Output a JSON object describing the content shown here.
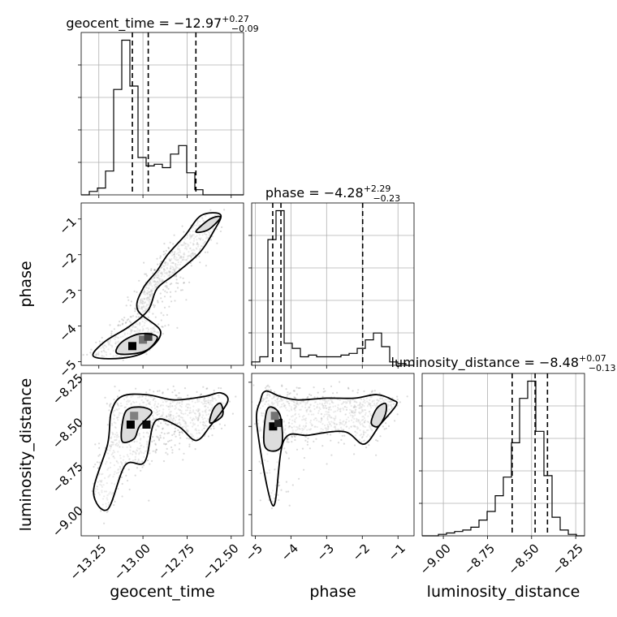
{
  "chart_data": {
    "type": "corner",
    "parameters": [
      "geocent_time",
      "phase",
      "luminosity_distance"
    ],
    "axis_labels": {
      "geocent_time": "geocent_time",
      "phase": "phase",
      "luminosity_distance": "luminosity_distance"
    },
    "ranges": {
      "geocent_time": [
        -13.35,
        -12.43
      ],
      "phase": [
        -5.1,
        -0.55
      ],
      "luminosity_distance": [
        -9.12,
        -8.2
      ]
    },
    "ticks": {
      "geocent_time": {
        "values": [
          -13.25,
          -13.0,
          -12.75,
          -12.5
        ],
        "labels": [
          "−13.25",
          "−13.00",
          "−12.75",
          "−12.50"
        ]
      },
      "phase": {
        "values": [
          -5,
          -4,
          -3,
          -2,
          -1
        ],
        "labels": [
          "−5",
          "−4",
          "−3",
          "−2",
          "−1"
        ]
      },
      "luminosity_distance": {
        "values": [
          -9.0,
          -8.75,
          -8.5,
          -8.25
        ],
        "labels": [
          "−9.00",
          "−8.75",
          "−8.50",
          "−8.25"
        ]
      }
    },
    "grid": true,
    "marginals": [
      {
        "parameter": "geocent_time",
        "title_main": "geocent_time = −12.97",
        "title_sup": "+0.27",
        "title_sub": "−0.09",
        "bin_edges": [
          -13.35,
          -13.304,
          -13.258,
          -13.212,
          -13.166,
          -13.12,
          -13.074,
          -13.028,
          -12.982,
          -12.936,
          -12.89,
          -12.844,
          -12.798,
          -12.752,
          -12.706,
          -12.66,
          -12.614,
          -12.568,
          -12.522,
          -12.476,
          -12.43
        ],
        "counts": [
          0,
          2,
          4,
          14,
          62,
          91,
          64,
          22,
          17,
          18,
          16,
          24,
          29,
          13,
          3,
          0,
          0,
          0,
          0,
          0
        ],
        "quantiles": [
          -13.06,
          -12.97,
          -12.7
        ]
      },
      {
        "parameter": "phase",
        "title_main": "phase = −4.28",
        "title_sup": "+2.29",
        "title_sub": "−0.23",
        "bin_edges": [
          -5.1,
          -4.8725,
          -4.645,
          -4.4175,
          -4.19,
          -3.9625,
          -3.735,
          -3.5075,
          -3.28,
          -3.0525,
          -2.825,
          -2.5975,
          -2.37,
          -2.1425,
          -1.915,
          -1.6875,
          -1.46,
          -1.2325,
          -1.005,
          -0.7775,
          -0.55
        ],
        "counts": [
          2,
          5,
          74,
          91,
          13,
          10,
          5,
          6,
          5,
          5,
          5,
          6,
          7,
          10,
          15,
          19,
          11,
          2,
          1,
          0
        ],
        "quantiles": [
          -4.51,
          -4.28,
          -1.99
        ]
      },
      {
        "parameter": "luminosity_distance",
        "title_main": "luminosity_distance = −8.48",
        "title_sup": "+0.07",
        "title_sub": "−0.13",
        "bin_edges": [
          -9.12,
          -9.074,
          -9.028,
          -8.982,
          -8.936,
          -8.89,
          -8.844,
          -8.798,
          -8.752,
          -8.706,
          -8.66,
          -8.614,
          -8.568,
          -8.522,
          -8.476,
          -8.43,
          -8.384,
          -8.338,
          -8.292,
          -8.246,
          -8.2
        ],
        "counts": [
          0,
          0,
          1,
          2,
          3,
          4,
          6,
          11,
          17,
          28,
          41,
          65,
          96,
          108,
          73,
          42,
          13,
          4,
          1,
          0
        ],
        "quantiles": [
          -8.61,
          -8.48,
          -8.41
        ]
      }
    ],
    "joint": [
      {
        "x": "geocent_time",
        "y": "phase",
        "contours": [
          [
            [
              -13.28,
              -4.85
            ],
            [
              -13.22,
              -4.45
            ],
            [
              -13.08,
              -4.02
            ],
            [
              -12.97,
              -3.55
            ],
            [
              -12.92,
              -2.95
            ],
            [
              -12.82,
              -2.55
            ],
            [
              -12.68,
              -1.95
            ],
            [
              -12.6,
              -1.35
            ],
            [
              -12.56,
              -0.88
            ],
            [
              -12.67,
              -0.9
            ],
            [
              -12.76,
              -1.45
            ],
            [
              -12.86,
              -2.0
            ],
            [
              -12.92,
              -2.45
            ],
            [
              -13.0,
              -2.95
            ],
            [
              -13.03,
              -3.55
            ],
            [
              -12.9,
              -4.15
            ],
            [
              -12.98,
              -4.7
            ],
            [
              -13.12,
              -4.9
            ]
          ],
          [
            [
              -13.15,
              -4.75
            ],
            [
              -13.12,
              -4.45
            ],
            [
              -13.02,
              -4.22
            ],
            [
              -12.92,
              -4.3
            ],
            [
              -12.97,
              -4.65
            ],
            [
              -13.06,
              -4.78
            ]
          ],
          [
            [
              -12.7,
              -1.35
            ],
            [
              -12.62,
              -1.0
            ],
            [
              -12.56,
              -0.95
            ],
            [
              -12.63,
              -1.3
            ]
          ]
        ],
        "density_peaks": [
          {
            "x": -13.06,
            "y": -4.56,
            "level": 1.0
          },
          {
            "x": -13.0,
            "y": -4.38,
            "level": 0.55
          },
          {
            "x": -12.97,
            "y": -4.3,
            "level": 0.75
          }
        ],
        "scatter_seed": 11,
        "scatter_n": 900
      },
      {
        "x": "geocent_time",
        "y": "luminosity_distance",
        "contours": [
          [
            [
              -13.28,
              -8.87
            ],
            [
              -13.2,
              -8.6
            ],
            [
              -13.18,
              -8.42
            ],
            [
              -13.12,
              -8.33
            ],
            [
              -12.98,
              -8.32
            ],
            [
              -12.82,
              -8.35
            ],
            [
              -12.65,
              -8.33
            ],
            [
              -12.56,
              -8.31
            ],
            [
              -12.52,
              -8.36
            ],
            [
              -12.62,
              -8.5
            ],
            [
              -12.7,
              -8.58
            ],
            [
              -12.8,
              -8.5
            ],
            [
              -12.93,
              -8.47
            ],
            [
              -12.99,
              -8.7
            ],
            [
              -13.1,
              -8.72
            ],
            [
              -13.2,
              -8.97
            ]
          ],
          [
            [
              -13.12,
              -8.58
            ],
            [
              -13.1,
              -8.42
            ],
            [
              -13.02,
              -8.39
            ],
            [
              -12.95,
              -8.42
            ],
            [
              -13.02,
              -8.5
            ],
            [
              -13.05,
              -8.57
            ]
          ],
          [
            [
              -12.62,
              -8.48
            ],
            [
              -12.6,
              -8.4
            ],
            [
              -12.56,
              -8.37
            ],
            [
              -12.55,
              -8.44
            ]
          ]
        ],
        "density_peaks": [
          {
            "x": -13.07,
            "y": -8.49,
            "level": 1.0
          },
          {
            "x": -12.98,
            "y": -8.49,
            "level": 0.95
          },
          {
            "x": -13.05,
            "y": -8.44,
            "level": 0.5
          }
        ],
        "scatter_seed": 23,
        "scatter_n": 900
      },
      {
        "x": "phase",
        "y": "luminosity_distance",
        "contours": [
          [
            [
              -4.95,
              -8.5
            ],
            [
              -4.85,
              -8.35
            ],
            [
              -4.7,
              -8.3
            ],
            [
              -4.3,
              -8.33
            ],
            [
              -3.8,
              -8.35
            ],
            [
              -3.0,
              -8.34
            ],
            [
              -2.2,
              -8.34
            ],
            [
              -1.6,
              -8.32
            ],
            [
              -1.15,
              -8.35
            ],
            [
              -1.05,
              -8.38
            ],
            [
              -1.5,
              -8.49
            ],
            [
              -1.95,
              -8.6
            ],
            [
              -2.5,
              -8.53
            ],
            [
              -3.5,
              -8.55
            ],
            [
              -4.2,
              -8.58
            ],
            [
              -4.5,
              -8.95
            ]
          ],
          [
            [
              -4.75,
              -8.6
            ],
            [
              -4.7,
              -8.43
            ],
            [
              -4.55,
              -8.39
            ],
            [
              -4.3,
              -8.44
            ],
            [
              -4.25,
              -8.6
            ],
            [
              -4.5,
              -8.64
            ]
          ],
          [
            [
              -1.75,
              -8.48
            ],
            [
              -1.6,
              -8.4
            ],
            [
              -1.35,
              -8.37
            ],
            [
              -1.35,
              -8.43
            ],
            [
              -1.55,
              -8.5
            ]
          ]
        ],
        "density_peaks": [
          {
            "x": -4.5,
            "y": -8.5,
            "level": 1.0
          },
          {
            "x": -4.35,
            "y": -8.48,
            "level": 0.85
          },
          {
            "x": -4.45,
            "y": -8.44,
            "level": 0.55
          }
        ],
        "scatter_seed": 37,
        "scatter_n": 900
      }
    ]
  }
}
